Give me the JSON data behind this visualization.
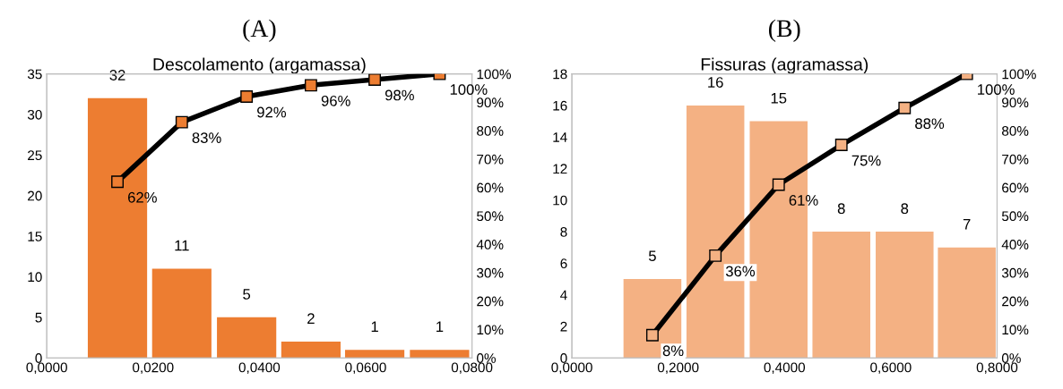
{
  "chart_data": [
    {
      "type": "bar",
      "title": "(A)",
      "subtitle": "Descolamento (argamassa)",
      "x": [
        0.0133,
        0.0254,
        0.0376,
        0.0497,
        0.0617,
        0.0739
      ],
      "xlim": [
        0,
        0.08
      ],
      "xticks": [
        {
          "value": 0,
          "label": "0,0000"
        },
        {
          "value": 0.02,
          "label": "0,0200"
        },
        {
          "value": 0.04,
          "label": "0,0400"
        },
        {
          "value": 0.06,
          "label": "0,0600"
        },
        {
          "value": 0.08,
          "label": "0,0800"
        }
      ],
      "ylim": [
        0,
        35
      ],
      "yticks": [
        0,
        5,
        10,
        15,
        20,
        25,
        30,
        35
      ],
      "y2lim": [
        0,
        100
      ],
      "y2ticks": [
        {
          "value": 0,
          "label": "0%"
        },
        {
          "value": 10,
          "label": "10%"
        },
        {
          "value": 20,
          "label": "20%"
        },
        {
          "value": 30,
          "label": "30%"
        },
        {
          "value": 40,
          "label": "40%"
        },
        {
          "value": 50,
          "label": "50%"
        },
        {
          "value": 60,
          "label": "60%"
        },
        {
          "value": 70,
          "label": "70%"
        },
        {
          "value": 80,
          "label": "80%"
        },
        {
          "value": 90,
          "label": "90%"
        },
        {
          "value": 100,
          "label": "100%"
        }
      ],
      "series": [
        {
          "color": "#ed7d31",
          "values": [
            32,
            11,
            5,
            2,
            1,
            1
          ],
          "value_labels": [
            "32",
            "11",
            "5",
            "2",
            "1",
            "1"
          ]
        },
        {
          "type": "line",
          "axis": "y2",
          "color": "#000000",
          "marker": "square",
          "values": [
            62,
            83,
            92,
            96,
            98,
            100
          ],
          "value_labels": [
            "62%",
            "83%",
            "92%",
            "96%",
            "98%",
            "100%"
          ]
        }
      ]
    },
    {
      "type": "bar",
      "title": "(B)",
      "subtitle": "Fissuras (agramassa)",
      "x": [
        0.1515,
        0.27,
        0.389,
        0.507,
        0.626,
        0.743
      ],
      "xlim": [
        0,
        0.8
      ],
      "xticks": [
        {
          "value": 0,
          "label": "0,0000"
        },
        {
          "value": 0.2,
          "label": "0,2000"
        },
        {
          "value": 0.4,
          "label": "0,4000"
        },
        {
          "value": 0.6,
          "label": "0,6000"
        },
        {
          "value": 0.8,
          "label": "0,8000"
        }
      ],
      "ylim": [
        0,
        18
      ],
      "yticks": [
        0,
        2,
        4,
        6,
        8,
        10,
        12,
        14,
        16,
        18
      ],
      "y2lim": [
        0,
        100
      ],
      "y2ticks": [
        {
          "value": 0,
          "label": "0%"
        },
        {
          "value": 10,
          "label": "10%"
        },
        {
          "value": 20,
          "label": "20%"
        },
        {
          "value": 30,
          "label": "30%"
        },
        {
          "value": 40,
          "label": "40%"
        },
        {
          "value": 50,
          "label": "50%"
        },
        {
          "value": 60,
          "label": "60%"
        },
        {
          "value": 70,
          "label": "70%"
        },
        {
          "value": 80,
          "label": "80%"
        },
        {
          "value": 90,
          "label": "90%"
        },
        {
          "value": 100,
          "label": "100%"
        }
      ],
      "series": [
        {
          "color": "#f4b183",
          "values": [
            5,
            16,
            15,
            8,
            8,
            7
          ],
          "value_labels": [
            "5",
            "16",
            "15",
            "8",
            "8",
            "7"
          ]
        },
        {
          "type": "line",
          "axis": "y2",
          "color": "#000000",
          "marker": "square",
          "values": [
            8,
            36,
            61,
            75,
            88,
            100
          ],
          "value_labels": [
            "8%",
            "36%",
            "61%",
            "75%",
            "88%",
            "100%"
          ]
        }
      ]
    }
  ]
}
